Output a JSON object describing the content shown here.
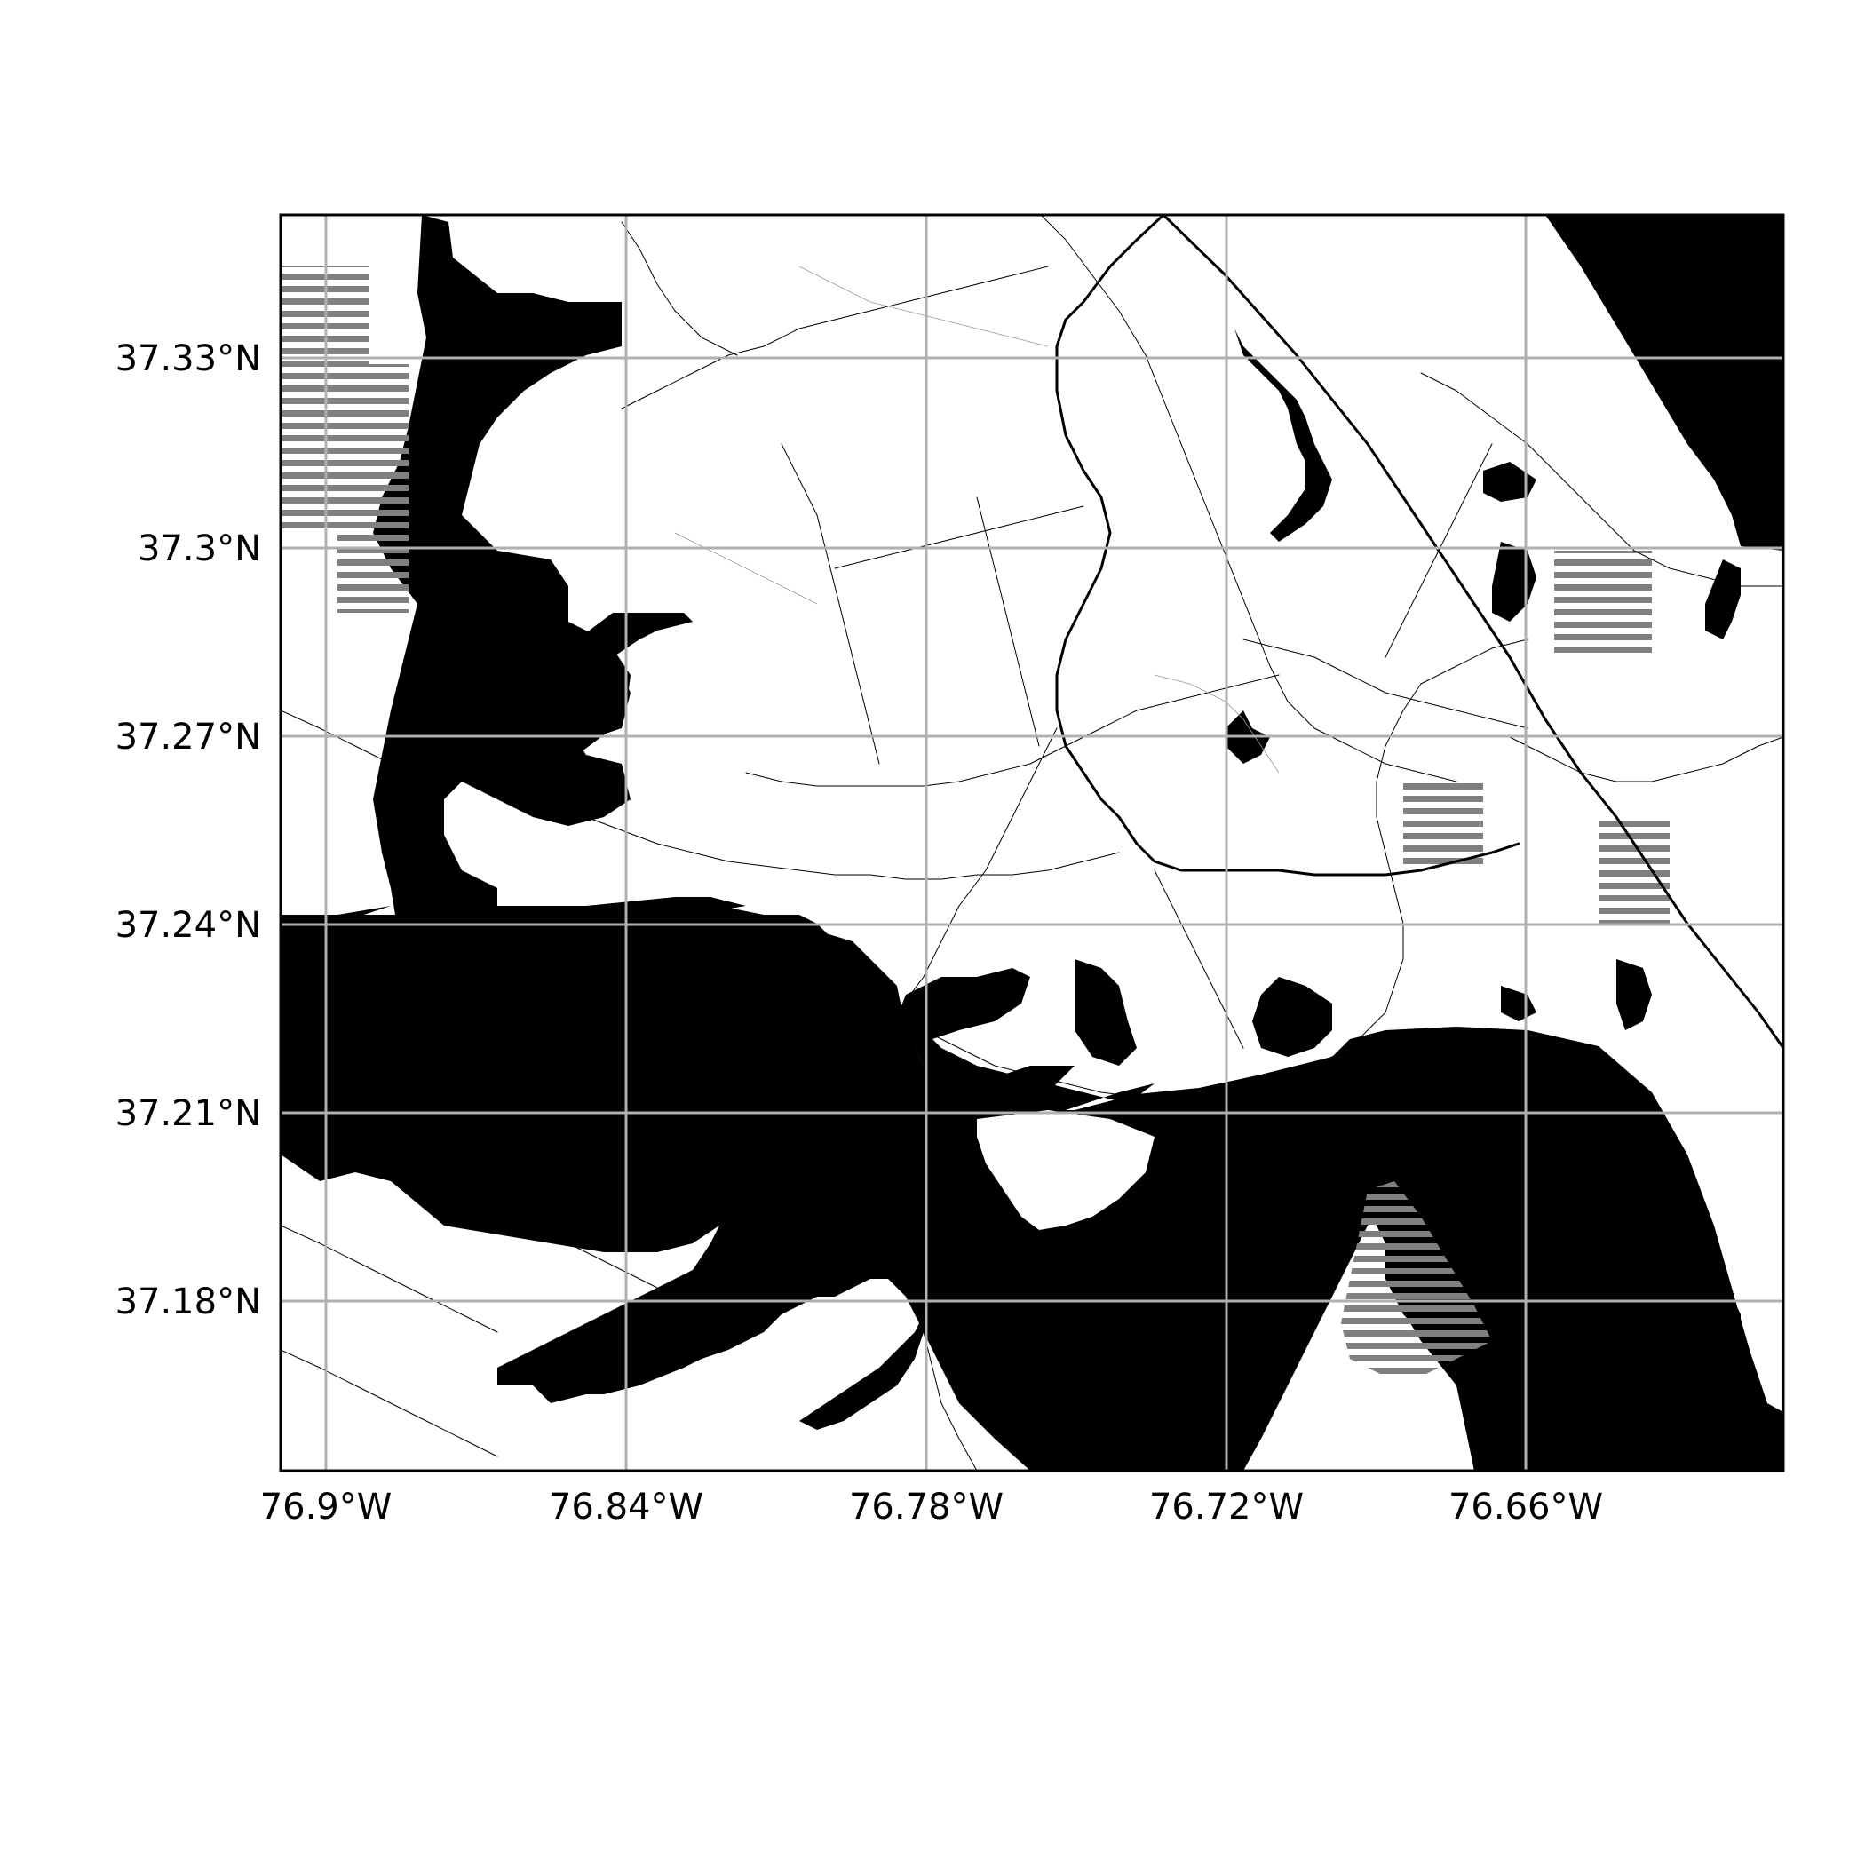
{
  "map": {
    "lon_ticks": [
      "76.9°W",
      "76.84°W",
      "76.78°W",
      "76.72°W",
      "76.66°W"
    ],
    "lat_ticks": [
      "37.33°N",
      "37.3°N",
      "37.27°N",
      "37.24°N",
      "37.21°N",
      "37.18°N"
    ],
    "lon_values": [
      -76.9,
      -76.84,
      -76.78,
      -76.72,
      -76.66
    ],
    "lat_values": [
      37.33,
      37.3,
      37.27,
      37.24,
      37.21,
      37.18
    ],
    "lon_range": [
      -76.909,
      -76.609
    ],
    "lat_range": [
      37.153,
      37.353
    ],
    "grid": true,
    "colors": {
      "water": "#000000",
      "land": "#ffffff",
      "grid": "#b0b0b0",
      "marsh": "#808080"
    }
  }
}
